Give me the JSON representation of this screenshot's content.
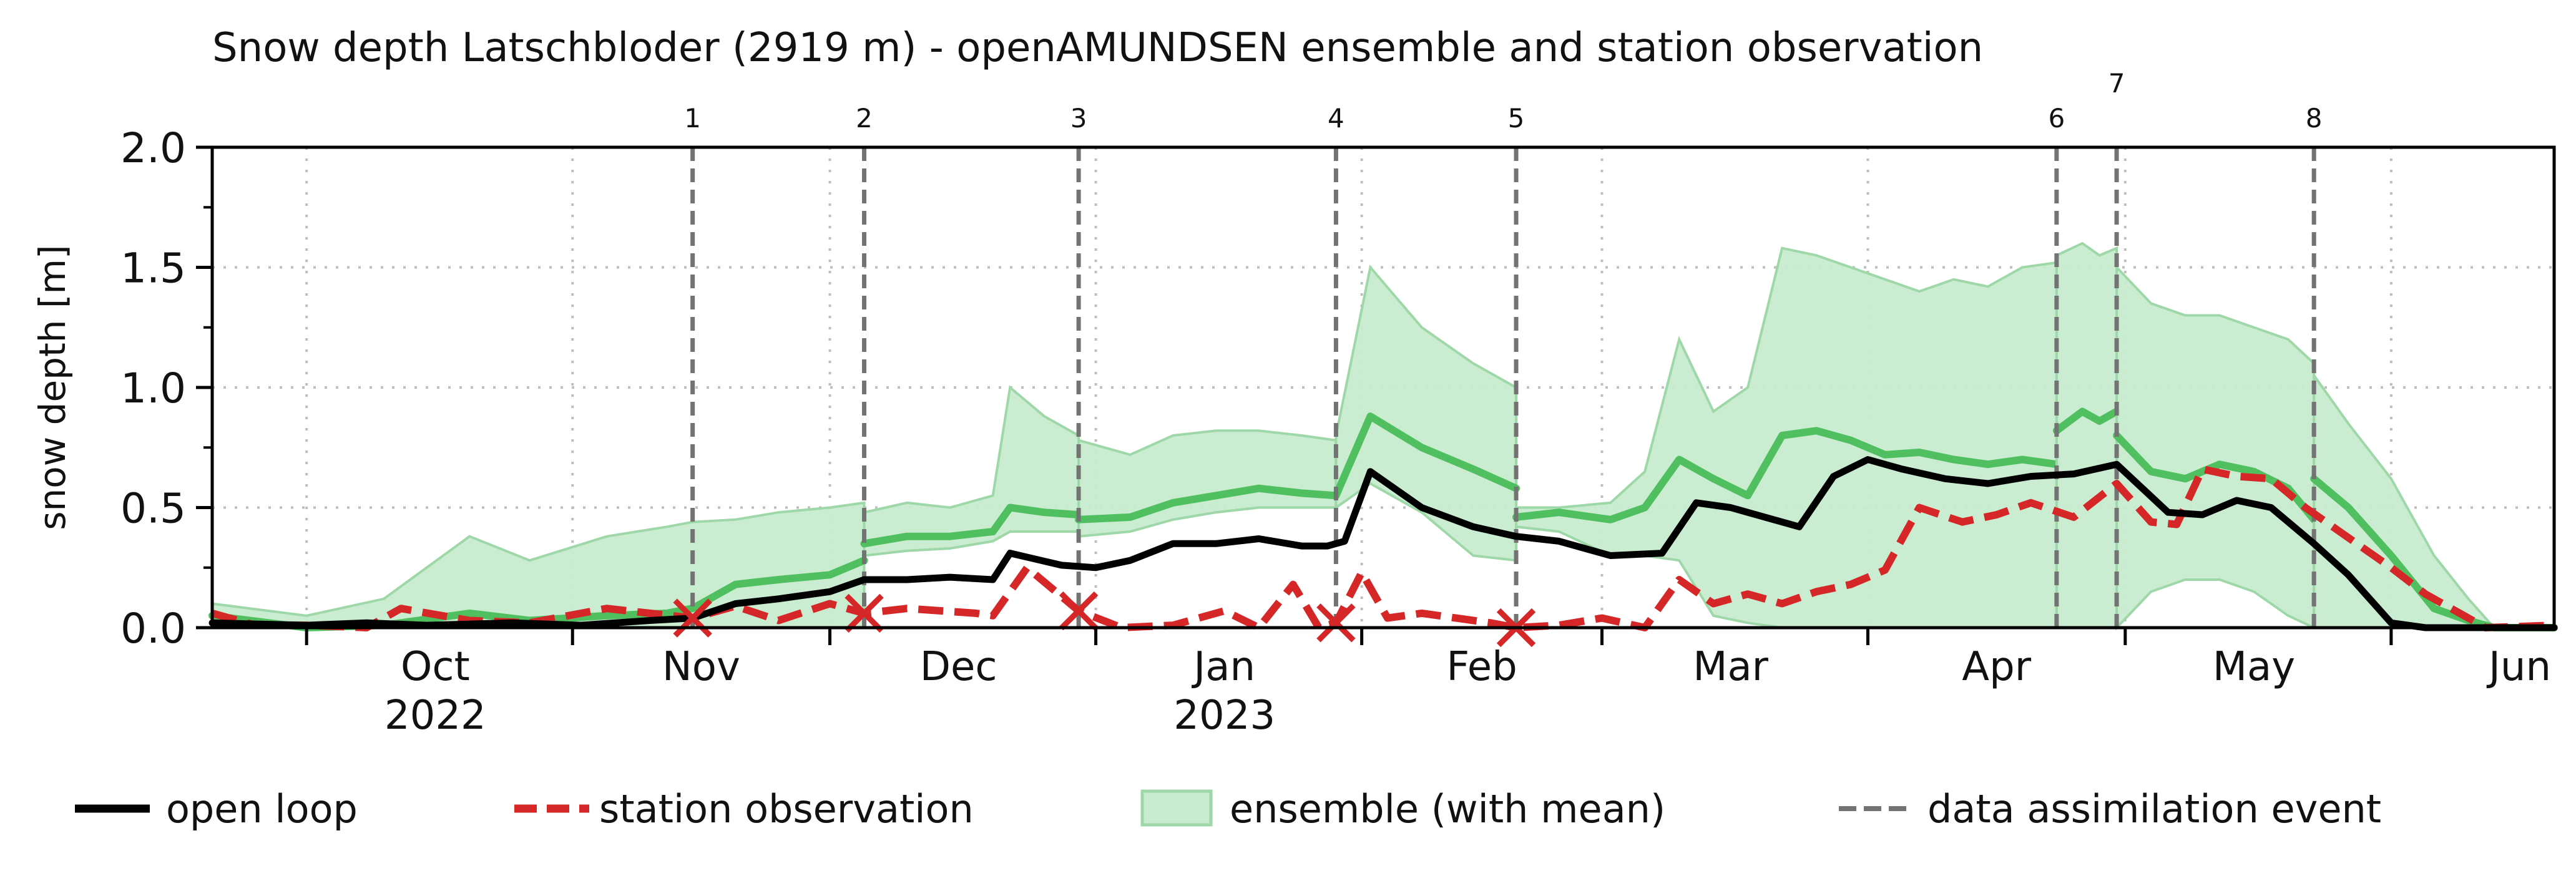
{
  "chart_data": {
    "type": "line",
    "title": "Snow depth Latschbloder (2919 m) - openAMUNDSEN ensemble and station observation",
    "ylabel": "snow depth [m]",
    "xlabel": "",
    "x_range": [
      "2022-09-20",
      "2023-06-20"
    ],
    "ylim": [
      0,
      2.0
    ],
    "yticks": [
      {
        "value": 0.0,
        "label": "0.0"
      },
      {
        "value": 0.5,
        "label": "0.5"
      },
      {
        "value": 1.0,
        "label": "1.0"
      },
      {
        "value": 1.5,
        "label": "1.5"
      },
      {
        "value": 2.0,
        "label": "2.0"
      }
    ],
    "month_labels": [
      {
        "date": "2022-10-16",
        "label": "Oct",
        "sublabel": "2022"
      },
      {
        "date": "2022-11-16",
        "label": "Nov",
        "sublabel": ""
      },
      {
        "date": "2022-12-16",
        "label": "Dec",
        "sublabel": ""
      },
      {
        "date": "2023-01-16",
        "label": "Jan",
        "sublabel": "2023"
      },
      {
        "date": "2023-02-15",
        "label": "Feb",
        "sublabel": ""
      },
      {
        "date": "2023-03-16",
        "label": "Mar",
        "sublabel": ""
      },
      {
        "date": "2023-04-16",
        "label": "Apr",
        "sublabel": ""
      },
      {
        "date": "2023-05-16",
        "label": "May",
        "sublabel": ""
      },
      {
        "date": "2023-06-16",
        "label": "Jun",
        "sublabel": ""
      }
    ],
    "month_boundaries": [
      "2022-10-01",
      "2022-11-01",
      "2022-12-01",
      "2023-01-01",
      "2023-02-01",
      "2023-03-01",
      "2023-04-01",
      "2023-05-01",
      "2023-06-01"
    ],
    "grid": true,
    "legend_position": "bottom",
    "colors": {
      "open_loop": "#000000",
      "station": "#d62728",
      "ensemble_mean": "#4fbf60",
      "ensemble_fill": "#c7ebcf",
      "ensemble_edge": "#9fd8a8",
      "event": "#737373",
      "grid": "#bfbfbf"
    },
    "assimilation_events": [
      {
        "label": "1",
        "date": "2022-11-15",
        "obs_value": 0.04
      },
      {
        "label": "2",
        "date": "2022-12-05",
        "obs_value": 0.06
      },
      {
        "label": "3",
        "date": "2022-12-30",
        "obs_value": 0.07
      },
      {
        "label": "4",
        "date": "2023-01-29",
        "obs_value": 0.02
      },
      {
        "label": "5",
        "date": "2023-02-19",
        "obs_value": 0.0
      },
      {
        "label": "6",
        "date": "2023-04-23",
        "obs_value": null
      },
      {
        "label": "7",
        "date": "2023-04-30",
        "obs_value": null
      },
      {
        "label": "8",
        "date": "2023-05-23",
        "obs_value": null
      }
    ],
    "series": [
      {
        "name": "open loop",
        "x": [
          "2022-09-20",
          "2022-10-01",
          "2022-10-08",
          "2022-10-15",
          "2022-10-25",
          "2022-11-02",
          "2022-11-10",
          "2022-11-15",
          "2022-11-20",
          "2022-11-25",
          "2022-12-01",
          "2022-12-05",
          "2022-12-10",
          "2022-12-15",
          "2022-12-20",
          "2022-12-22",
          "2022-12-28",
          "2023-01-01",
          "2023-01-05",
          "2023-01-10",
          "2023-01-15",
          "2023-01-20",
          "2023-01-25",
          "2023-01-28",
          "2023-01-30",
          "2023-02-02",
          "2023-02-08",
          "2023-02-14",
          "2023-02-19",
          "2023-02-24",
          "2023-03-02",
          "2023-03-08",
          "2023-03-12",
          "2023-03-16",
          "2023-03-20",
          "2023-03-24",
          "2023-03-28",
          "2023-04-01",
          "2023-04-05",
          "2023-04-10",
          "2023-04-15",
          "2023-04-20",
          "2023-04-25",
          "2023-04-30",
          "2023-05-03",
          "2023-05-06",
          "2023-05-10",
          "2023-05-14",
          "2023-05-18",
          "2023-05-23",
          "2023-05-27",
          "2023-06-01",
          "2023-06-05",
          "2023-06-20"
        ],
        "values": [
          0.02,
          0.01,
          0.02,
          0.01,
          0.02,
          0.01,
          0.03,
          0.04,
          0.1,
          0.12,
          0.15,
          0.2,
          0.2,
          0.21,
          0.2,
          0.31,
          0.26,
          0.25,
          0.28,
          0.35,
          0.35,
          0.37,
          0.34,
          0.34,
          0.36,
          0.65,
          0.5,
          0.42,
          0.38,
          0.36,
          0.3,
          0.31,
          0.52,
          0.5,
          0.46,
          0.42,
          0.63,
          0.7,
          0.66,
          0.62,
          0.6,
          0.63,
          0.64,
          0.68,
          0.58,
          0.48,
          0.47,
          0.53,
          0.5,
          0.35,
          0.22,
          0.02,
          0.0,
          0.0
        ]
      },
      {
        "name": "station observation",
        "x": [
          "2022-09-20",
          "2022-09-25",
          "2022-10-01",
          "2022-10-08",
          "2022-10-12",
          "2022-10-20",
          "2022-10-27",
          "2022-11-05",
          "2022-11-10",
          "2022-11-15",
          "2022-11-20",
          "2022-11-25",
          "2022-12-01",
          "2022-12-05",
          "2022-12-10",
          "2022-12-18",
          "2022-12-20",
          "2022-12-24",
          "2022-12-30",
          "2023-01-04",
          "2023-01-10",
          "2023-01-16",
          "2023-01-20",
          "2023-01-24",
          "2023-01-27",
          "2023-01-29",
          "2023-02-01",
          "2023-02-04",
          "2023-02-08",
          "2023-02-12",
          "2023-02-16",
          "2023-02-19",
          "2023-02-24",
          "2023-03-01",
          "2023-03-06",
          "2023-03-10",
          "2023-03-14",
          "2023-03-18",
          "2023-03-22",
          "2023-03-26",
          "2023-03-30",
          "2023-04-03",
          "2023-04-07",
          "2023-04-12",
          "2023-04-16",
          "2023-04-20",
          "2023-04-25",
          "2023-04-30",
          "2023-05-04",
          "2023-05-07",
          "2023-05-10",
          "2023-05-14",
          "2023-05-18",
          "2023-05-22",
          "2023-05-26",
          "2023-06-01",
          "2023-06-05",
          "2023-06-12",
          "2023-06-20"
        ],
        "values": [
          0.06,
          0.01,
          0.01,
          0.0,
          0.08,
          0.03,
          0.02,
          0.08,
          0.06,
          0.04,
          0.09,
          0.03,
          0.1,
          0.06,
          0.08,
          0.06,
          0.05,
          0.25,
          0.07,
          0.0,
          0.01,
          0.07,
          0.0,
          0.18,
          0.0,
          0.02,
          0.23,
          0.04,
          0.06,
          0.04,
          0.02,
          0.0,
          0.01,
          0.04,
          0.0,
          0.2,
          0.1,
          0.14,
          0.1,
          0.15,
          0.18,
          0.24,
          0.5,
          0.44,
          0.47,
          0.52,
          0.46,
          0.6,
          0.44,
          0.43,
          0.66,
          0.63,
          0.62,
          0.5,
          0.4,
          0.25,
          0.14,
          0.0,
          0.01
        ]
      },
      {
        "name": "ensemble (with mean)",
        "segments": [
          {
            "x": [
              "2022-09-20",
              "2022-10-01",
              "2022-10-10",
              "2022-10-20",
              "2022-10-27",
              "2022-11-05",
              "2022-11-12",
              "2022-11-15",
              "2022-11-20",
              "2022-11-25",
              "2022-12-01",
              "2022-12-05"
            ],
            "mean": [
              0.05,
              0.0,
              0.01,
              0.06,
              0.03,
              0.05,
              0.06,
              0.08,
              0.18,
              0.2,
              0.22,
              0.28
            ],
            "upper": [
              0.1,
              0.05,
              0.12,
              0.38,
              0.28,
              0.38,
              0.42,
              0.44,
              0.45,
              0.48,
              0.5,
              0.52
            ],
            "lower": [
              0.0,
              0.0,
              0.0,
              0.0,
              0.0,
              0.0,
              0.0,
              0.0,
              0.0,
              0.0,
              0.0,
              0.0
            ]
          },
          {
            "x": [
              "2022-12-05",
              "2022-12-10",
              "2022-12-15",
              "2022-12-20",
              "2022-12-22",
              "2022-12-26",
              "2022-12-30"
            ],
            "mean": [
              0.35,
              0.38,
              0.38,
              0.4,
              0.5,
              0.48,
              0.47
            ],
            "upper": [
              0.48,
              0.52,
              0.5,
              0.55,
              1.0,
              0.88,
              0.8
            ],
            "lower": [
              0.3,
              0.32,
              0.33,
              0.36,
              0.4,
              0.4,
              0.4
            ]
          },
          {
            "x": [
              "2022-12-30",
              "2023-01-05",
              "2023-01-10",
              "2023-01-15",
              "2023-01-20",
              "2023-01-25",
              "2023-01-29"
            ],
            "mean": [
              0.45,
              0.46,
              0.52,
              0.55,
              0.58,
              0.56,
              0.55
            ],
            "upper": [
              0.78,
              0.72,
              0.8,
              0.82,
              0.82,
              0.8,
              0.78
            ],
            "lower": [
              0.38,
              0.4,
              0.45,
              0.48,
              0.5,
              0.5,
              0.5
            ]
          },
          {
            "x": [
              "2023-01-29",
              "2023-02-02",
              "2023-02-08",
              "2023-02-14",
              "2023-02-19"
            ],
            "mean": [
              0.55,
              0.88,
              0.75,
              0.66,
              0.58
            ],
            "upper": [
              0.8,
              1.5,
              1.25,
              1.1,
              1.0
            ],
            "lower": [
              0.5,
              0.6,
              0.48,
              0.3,
              0.28
            ]
          },
          {
            "x": [
              "2023-02-19",
              "2023-02-24",
              "2023-03-02",
              "2023-03-06",
              "2023-03-10",
              "2023-03-14",
              "2023-03-18",
              "2023-03-22",
              "2023-03-26",
              "2023-03-30",
              "2023-04-03",
              "2023-04-07",
              "2023-04-11",
              "2023-04-15",
              "2023-04-19",
              "2023-04-23"
            ],
            "mean": [
              0.46,
              0.48,
              0.45,
              0.5,
              0.7,
              0.62,
              0.55,
              0.8,
              0.82,
              0.78,
              0.72,
              0.73,
              0.7,
              0.68,
              0.7,
              0.68
            ],
            "upper": [
              0.5,
              0.5,
              0.52,
              0.65,
              1.2,
              0.9,
              1.0,
              1.58,
              1.55,
              1.5,
              1.45,
              1.4,
              1.45,
              1.42,
              1.5,
              1.52
            ],
            "lower": [
              0.42,
              0.4,
              0.3,
              0.3,
              0.28,
              0.05,
              0.02,
              0.0,
              0.0,
              0.0,
              0.0,
              0.0,
              0.0,
              0.0,
              0.0,
              0.0
            ]
          },
          {
            "x": [
              "2023-04-23",
              "2023-04-26",
              "2023-04-28",
              "2023-04-30"
            ],
            "mean": [
              0.82,
              0.9,
              0.86,
              0.9
            ],
            "upper": [
              1.55,
              1.6,
              1.55,
              1.58
            ],
            "lower": [
              0.0,
              0.0,
              0.0,
              0.0
            ]
          },
          {
            "x": [
              "2023-04-30",
              "2023-05-04",
              "2023-05-08",
              "2023-05-12",
              "2023-05-16",
              "2023-05-20",
              "2023-05-23"
            ],
            "mean": [
              0.8,
              0.65,
              0.62,
              0.68,
              0.65,
              0.58,
              0.45
            ],
            "upper": [
              1.5,
              1.35,
              1.3,
              1.3,
              1.25,
              1.2,
              1.1
            ],
            "lower": [
              0.0,
              0.15,
              0.2,
              0.2,
              0.15,
              0.05,
              0.0
            ]
          },
          {
            "x": [
              "2023-05-23",
              "2023-05-27",
              "2023-06-01",
              "2023-06-06",
              "2023-06-10",
              "2023-06-13",
              "2023-06-20"
            ],
            "mean": [
              0.62,
              0.5,
              0.3,
              0.08,
              0.03,
              0.0,
              0.0
            ],
            "upper": [
              1.05,
              0.85,
              0.62,
              0.3,
              0.12,
              0.0,
              0.0
            ],
            "lower": [
              0.0,
              0.0,
              0.0,
              0.0,
              0.0,
              0.0,
              0.0
            ]
          }
        ]
      }
    ],
    "legend": [
      {
        "key": "open_loop",
        "label": "open loop"
      },
      {
        "key": "station",
        "label": "station observation"
      },
      {
        "key": "ensemble",
        "label": "ensemble (with mean)"
      },
      {
        "key": "event",
        "label": "data assimilation event"
      }
    ]
  }
}
